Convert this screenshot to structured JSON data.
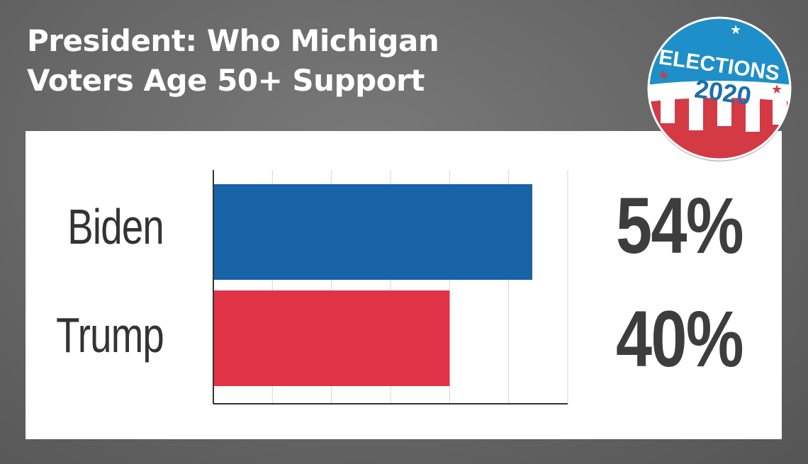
{
  "title_lines": [
    "President: Who Michigan",
    "Voters Age 50+ Support"
  ],
  "badge": {
    "line1": "ELECTIONS",
    "line2": "2020"
  },
  "colors": {
    "biden": "#1862a6",
    "trump": "#e03446",
    "grid": "#d6d6d6",
    "axis": "#333333"
  },
  "chart_data": {
    "type": "bar",
    "orientation": "horizontal",
    "categories": [
      "Biden",
      "Trump"
    ],
    "values": [
      54,
      40
    ],
    "value_labels": [
      "54%",
      "40%"
    ],
    "xlim": [
      0,
      60
    ],
    "grid": true
  }
}
